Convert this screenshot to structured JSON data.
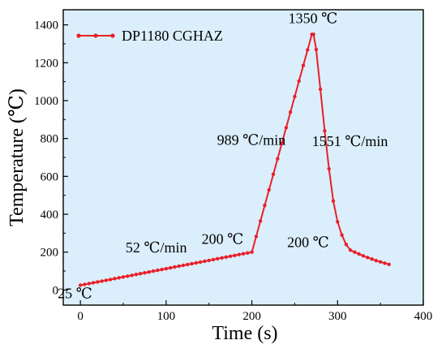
{
  "chart_data": {
    "type": "line",
    "title": "",
    "xlabel": "Time (s)",
    "ylabel": "Temperature (℃)",
    "xlim": [
      -20,
      400
    ],
    "ylim": [
      -80,
      1480
    ],
    "x_ticks": [
      0,
      100,
      200,
      300,
      400
    ],
    "y_ticks": [
      0,
      200,
      400,
      600,
      800,
      1000,
      1200,
      1400
    ],
    "legend_position": "top-left",
    "grid": false,
    "series": [
      {
        "name": "DP1180 CGHAZ",
        "color": "#e8202a",
        "marker": "circle",
        "points": [
          [
            0,
            25
          ],
          [
            200,
            200
          ],
          [
            270,
            1350
          ],
          [
            272,
            1350
          ],
          [
            275,
            1270
          ],
          [
            280,
            1060
          ],
          [
            285,
            840
          ],
          [
            290,
            640
          ],
          [
            295,
            470
          ],
          [
            300,
            360
          ],
          [
            305,
            290
          ],
          [
            310,
            240
          ],
          [
            315,
            210
          ],
          [
            330,
            180
          ],
          [
            345,
            155
          ],
          [
            360,
            135
          ]
        ]
      }
    ],
    "annotations": [
      {
        "text": "25 ℃",
        "x": 0,
        "y": 25
      },
      {
        "text": "52 ℃/min",
        "x": 100,
        "y": 112
      },
      {
        "text": "200 ℃",
        "x": 200,
        "y": 200
      },
      {
        "text": "989 ℃/min",
        "x": 235,
        "y": 775
      },
      {
        "text": "1350 ℃",
        "x": 271,
        "y": 1350
      },
      {
        "text": "1551 ℃/min",
        "x": 290,
        "y": 640
      },
      {
        "text": "200 ℃",
        "x": 315,
        "y": 210
      }
    ]
  }
}
